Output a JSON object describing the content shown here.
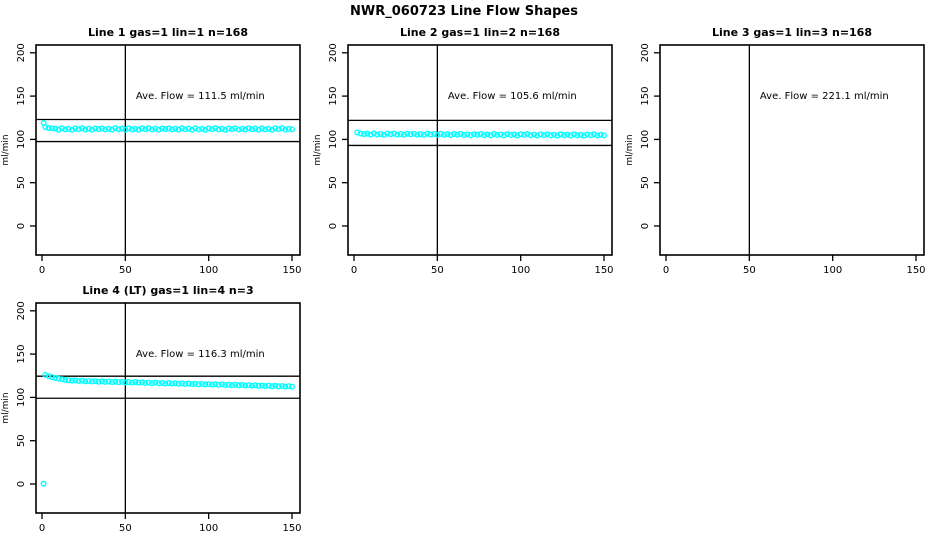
{
  "title": "NWR_060723  Line Flow Shapes",
  "chart_data": {
    "type": "scatter",
    "title": "NWR_060723  Line Flow Shapes",
    "ylabel": "ml/min",
    "xlabel": "",
    "x_ticks": [
      0,
      50,
      100,
      150
    ],
    "y_ticks": [
      0,
      50,
      100,
      150,
      200
    ],
    "xlim": [
      0,
      150
    ],
    "ylim": [
      0,
      200
    ],
    "grid": false,
    "legend": "none",
    "point_color": "#00ffff",
    "line_color": "#000000",
    "vline_x": 50,
    "plots": [
      {
        "title": "Line 1 gas=1 lin=1 n=168",
        "ave_flow": 111.5,
        "ave_flow_label": "Ave. Flow =  111.5  ml/min",
        "ref_lines": [
          123.0,
          97.5
        ],
        "points": [
          [
            1,
            119.0
          ],
          [
            2,
            114.2
          ],
          [
            4,
            113.1
          ],
          [
            6,
            112.9
          ],
          [
            8,
            112.4
          ],
          [
            10,
            111.2
          ],
          [
            12,
            112.9
          ],
          [
            14,
            111.6
          ],
          [
            16,
            112.1
          ],
          [
            18,
            111.0
          ],
          [
            20,
            112.7
          ],
          [
            22,
            111.8
          ],
          [
            24,
            113.0
          ],
          [
            26,
            111.4
          ],
          [
            28,
            112.3
          ],
          [
            30,
            111.1
          ],
          [
            32,
            112.6
          ],
          [
            34,
            111.9
          ],
          [
            36,
            112.8
          ],
          [
            38,
            111.5
          ],
          [
            40,
            112.2
          ],
          [
            42,
            111.3
          ],
          [
            44,
            113.0
          ],
          [
            46,
            111.7
          ],
          [
            48,
            112.4
          ],
          [
            50,
            111.2
          ],
          [
            52,
            112.9
          ],
          [
            54,
            111.6
          ],
          [
            56,
            112.1
          ],
          [
            58,
            111.0
          ],
          [
            60,
            112.7
          ],
          [
            62,
            111.8
          ],
          [
            64,
            113.0
          ],
          [
            66,
            111.4
          ],
          [
            68,
            112.3
          ],
          [
            70,
            111.1
          ],
          [
            72,
            112.6
          ],
          [
            74,
            111.9
          ],
          [
            76,
            112.8
          ],
          [
            78,
            111.5
          ],
          [
            80,
            112.2
          ],
          [
            82,
            111.3
          ],
          [
            84,
            113.0
          ],
          [
            86,
            111.7
          ],
          [
            88,
            112.4
          ],
          [
            90,
            111.2
          ],
          [
            92,
            112.9
          ],
          [
            94,
            111.6
          ],
          [
            96,
            112.1
          ],
          [
            98,
            111.0
          ],
          [
            100,
            112.7
          ],
          [
            102,
            111.8
          ],
          [
            104,
            113.0
          ],
          [
            106,
            111.4
          ],
          [
            108,
            112.3
          ],
          [
            110,
            111.1
          ],
          [
            112,
            112.6
          ],
          [
            114,
            111.9
          ],
          [
            116,
            112.8
          ],
          [
            118,
            111.5
          ],
          [
            120,
            112.2
          ],
          [
            122,
            111.3
          ],
          [
            124,
            113.0
          ],
          [
            126,
            111.7
          ],
          [
            128,
            112.4
          ],
          [
            130,
            111.2
          ],
          [
            132,
            112.9
          ],
          [
            134,
            111.6
          ],
          [
            136,
            112.1
          ],
          [
            138,
            111.0
          ],
          [
            140,
            112.7
          ],
          [
            142,
            111.8
          ],
          [
            144,
            113.0
          ],
          [
            146,
            111.4
          ],
          [
            148,
            112.3
          ],
          [
            150,
            111.6
          ]
        ]
      },
      {
        "title": "Line 2 gas=1 lin=2 n=168",
        "ave_flow": 105.6,
        "ave_flow_label": "Ave. Flow =  105.6  ml/min",
        "ref_lines": [
          122.0,
          93.0
        ],
        "points": [
          [
            2,
            108.0
          ],
          [
            4,
            106.8
          ],
          [
            6,
            106.1
          ],
          [
            8,
            106.6
          ],
          [
            10,
            105.4
          ],
          [
            12,
            106.9
          ],
          [
            14,
            105.7
          ],
          [
            16,
            106.2
          ],
          [
            18,
            105.2
          ],
          [
            20,
            106.7
          ],
          [
            22,
            105.9
          ],
          [
            24,
            106.8
          ],
          [
            26,
            105.5
          ],
          [
            28,
            106.3
          ],
          [
            30,
            105.3
          ],
          [
            32,
            106.6
          ],
          [
            34,
            105.8
          ],
          [
            36,
            106.5
          ],
          [
            38,
            105.4
          ],
          [
            40,
            106.1
          ],
          [
            42,
            105.2
          ],
          [
            44,
            106.6
          ],
          [
            46,
            105.6
          ],
          [
            48,
            106.2
          ],
          [
            50,
            105.1
          ],
          [
            52,
            106.5
          ],
          [
            54,
            105.4
          ],
          [
            56,
            105.9
          ],
          [
            58,
            104.9
          ],
          [
            60,
            106.3
          ],
          [
            62,
            105.5
          ],
          [
            64,
            106.4
          ],
          [
            66,
            105.1
          ],
          [
            68,
            105.8
          ],
          [
            70,
            104.8
          ],
          [
            72,
            106.1
          ],
          [
            74,
            105.4
          ],
          [
            76,
            106.2
          ],
          [
            78,
            105.0
          ],
          [
            80,
            105.6
          ],
          [
            82,
            104.7
          ],
          [
            84,
            106.2
          ],
          [
            86,
            105.2
          ],
          [
            88,
            105.8
          ],
          [
            90,
            104.7
          ],
          [
            92,
            106.1
          ],
          [
            94,
            105.1
          ],
          [
            96,
            105.6
          ],
          [
            98,
            104.5
          ],
          [
            100,
            106.0
          ],
          [
            102,
            105.2
          ],
          [
            104,
            106.2
          ],
          [
            106,
            104.8
          ],
          [
            108,
            105.5
          ],
          [
            110,
            104.4
          ],
          [
            112,
            105.8
          ],
          [
            114,
            105.1
          ],
          [
            116,
            105.9
          ],
          [
            118,
            104.6
          ],
          [
            120,
            105.3
          ],
          [
            122,
            104.4
          ],
          [
            124,
            105.9
          ],
          [
            126,
            104.9
          ],
          [
            128,
            105.5
          ],
          [
            130,
            104.3
          ],
          [
            132,
            105.8
          ],
          [
            134,
            104.8
          ],
          [
            136,
            105.2
          ],
          [
            138,
            104.2
          ],
          [
            140,
            105.7
          ],
          [
            142,
            104.9
          ],
          [
            144,
            105.9
          ],
          [
            146,
            104.5
          ],
          [
            148,
            105.3
          ],
          [
            150,
            104.7
          ]
        ]
      },
      {
        "title": "Line 3 gas=1 lin=3 n=168",
        "ave_flow": 221.1,
        "ave_flow_label": "Ave. Flow =  221.1  ml/min",
        "ref_lines": [],
        "points": []
      },
      {
        "title": "Line 4 (LT) gas=1 lin=4 n=3",
        "ave_flow": 116.3,
        "ave_flow_label": "Ave. Flow =  116.3  ml/min",
        "ref_lines": [
          124.5,
          99.0
        ],
        "points": [
          [
            1,
            0.5
          ],
          [
            2,
            126.0
          ],
          [
            4,
            124.6
          ],
          [
            6,
            123.4
          ],
          [
            8,
            122.4
          ],
          [
            10,
            121.6
          ],
          [
            12,
            120.9
          ],
          [
            14,
            120.3
          ],
          [
            16,
            119.8
          ],
          [
            18,
            119.4
          ],
          [
            20,
            119.6
          ],
          [
            22,
            118.8
          ],
          [
            24,
            119.3
          ],
          [
            26,
            118.5
          ],
          [
            28,
            119.0
          ],
          [
            30,
            118.3
          ],
          [
            32,
            118.8
          ],
          [
            34,
            118.1
          ],
          [
            36,
            118.6
          ],
          [
            38,
            117.9
          ],
          [
            40,
            118.4
          ],
          [
            42,
            117.7
          ],
          [
            44,
            118.2
          ],
          [
            46,
            117.5
          ],
          [
            48,
            118.0
          ],
          [
            50,
            117.3
          ],
          [
            52,
            117.8
          ],
          [
            54,
            117.1
          ],
          [
            56,
            117.6
          ],
          [
            58,
            116.9
          ],
          [
            60,
            117.4
          ],
          [
            62,
            116.7
          ],
          [
            64,
            117.2
          ],
          [
            66,
            116.5
          ],
          [
            68,
            117.0
          ],
          [
            70,
            116.3
          ],
          [
            72,
            116.8
          ],
          [
            74,
            116.1
          ],
          [
            76,
            116.6
          ],
          [
            78,
            115.9
          ],
          [
            80,
            116.4
          ],
          [
            82,
            115.7
          ],
          [
            84,
            116.2
          ],
          [
            86,
            115.5
          ],
          [
            88,
            116.0
          ],
          [
            90,
            115.3
          ],
          [
            92,
            115.8
          ],
          [
            94,
            115.1
          ],
          [
            96,
            115.6
          ],
          [
            98,
            114.9
          ],
          [
            100,
            115.4
          ],
          [
            102,
            114.7
          ],
          [
            104,
            115.2
          ],
          [
            106,
            114.5
          ],
          [
            108,
            115.0
          ],
          [
            110,
            114.3
          ],
          [
            112,
            114.8
          ],
          [
            114,
            114.1
          ],
          [
            116,
            114.6
          ],
          [
            118,
            113.9
          ],
          [
            120,
            114.4
          ],
          [
            122,
            113.7
          ],
          [
            124,
            114.2
          ],
          [
            126,
            113.5
          ],
          [
            128,
            114.0
          ],
          [
            130,
            113.3
          ],
          [
            132,
            113.8
          ],
          [
            134,
            113.1
          ],
          [
            136,
            113.6
          ],
          [
            138,
            112.9
          ],
          [
            140,
            113.4
          ],
          [
            142,
            112.7
          ],
          [
            144,
            113.2
          ],
          [
            146,
            112.5
          ],
          [
            148,
            113.0
          ],
          [
            150,
            112.3
          ]
        ]
      }
    ]
  }
}
